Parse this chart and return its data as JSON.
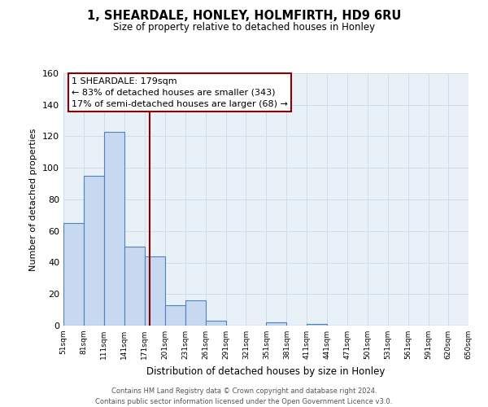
{
  "title": "1, SHEARDALE, HONLEY, HOLMFIRTH, HD9 6RU",
  "subtitle": "Size of property relative to detached houses in Honley",
  "xlabel": "Distribution of detached houses by size in Honley",
  "ylabel": "Number of detached properties",
  "bar_edges": [
    51,
    81,
    111,
    141,
    171,
    201,
    231,
    261,
    291,
    321,
    351,
    381,
    411,
    441,
    471,
    501,
    531,
    561,
    591,
    620,
    650
  ],
  "bar_heights": [
    65,
    95,
    123,
    50,
    44,
    13,
    16,
    3,
    0,
    0,
    2,
    0,
    1,
    0,
    0,
    0,
    0,
    0,
    0,
    0
  ],
  "bar_color": "#c6d9f0",
  "bar_edge_color": "#4f81bd",
  "property_line_x": 179,
  "property_line_color": "#8b0000",
  "annotation_title": "1 SHEARDALE: 179sqm",
  "annotation_line1": "← 83% of detached houses are smaller (343)",
  "annotation_line2": "17% of semi-detached houses are larger (68) →",
  "ylim": [
    0,
    160
  ],
  "yticks": [
    0,
    20,
    40,
    60,
    80,
    100,
    120,
    140,
    160
  ],
  "grid_color": "#d0dce8",
  "plot_bg_color": "#e8f0f8",
  "background_color": "#ffffff",
  "footer_line1": "Contains HM Land Registry data © Crown copyright and database right 2024.",
  "footer_line2": "Contains public sector information licensed under the Open Government Licence v3.0."
}
